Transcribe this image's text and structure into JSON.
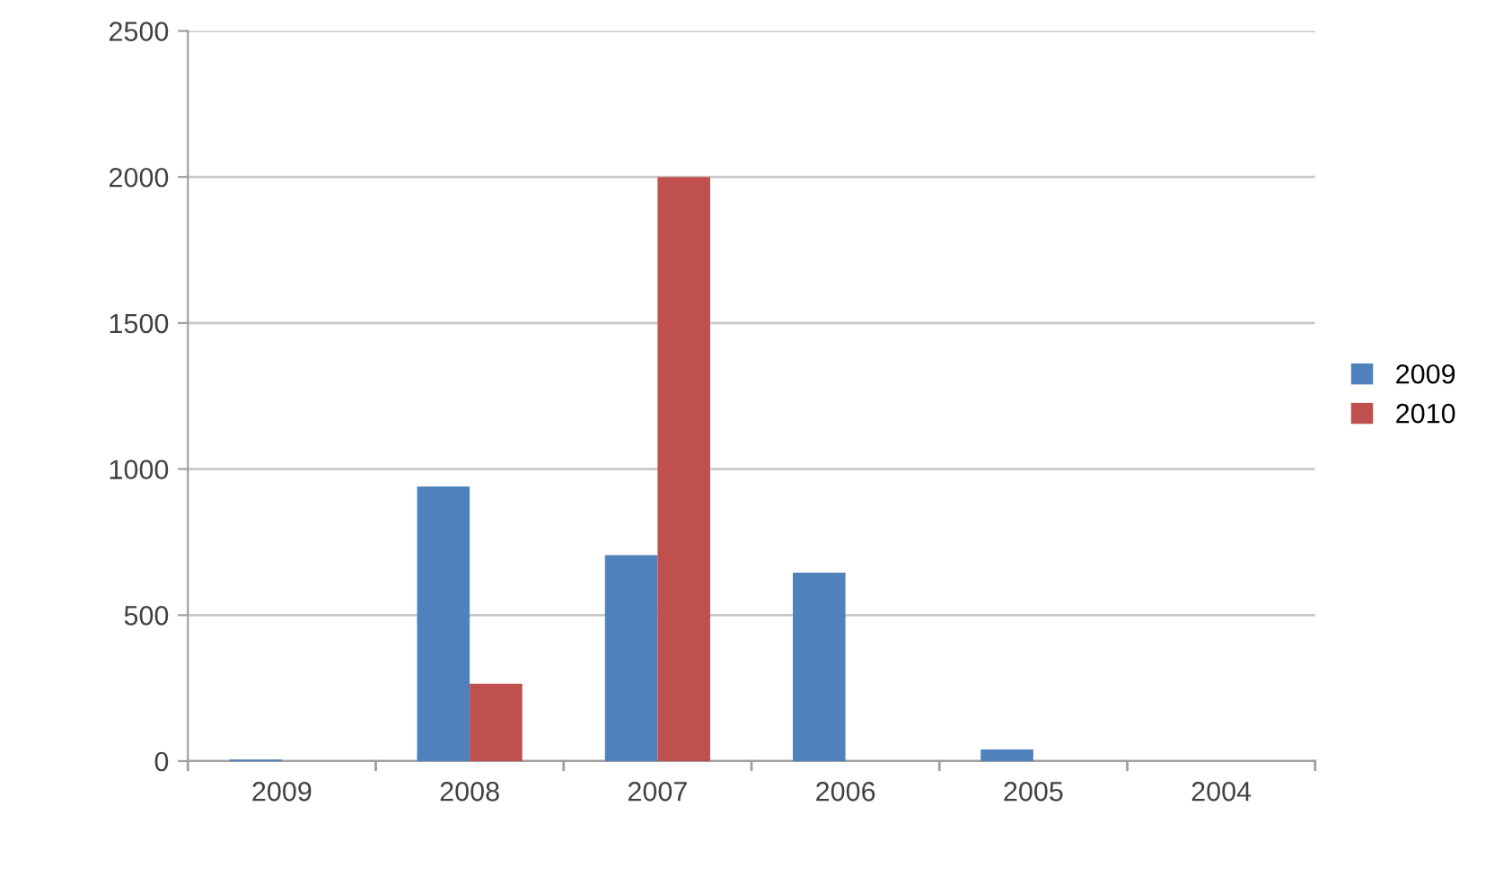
{
  "chart_data": {
    "type": "bar",
    "categories": [
      "2009",
      "2008",
      "2007",
      "2006",
      "2005",
      "2004"
    ],
    "series": [
      {
        "name": "2009",
        "color": "#4f81bd",
        "values": [
          5,
          940,
          705,
          645,
          40,
          0
        ]
      },
      {
        "name": "2010",
        "color": "#c0504d",
        "values": [
          0,
          265,
          2000,
          0,
          0,
          0
        ]
      }
    ],
    "ylim": [
      0,
      2500
    ],
    "yticks": [
      0,
      500,
      1000,
      1500,
      2000,
      2500
    ],
    "grid": "y",
    "legend": "right"
  }
}
